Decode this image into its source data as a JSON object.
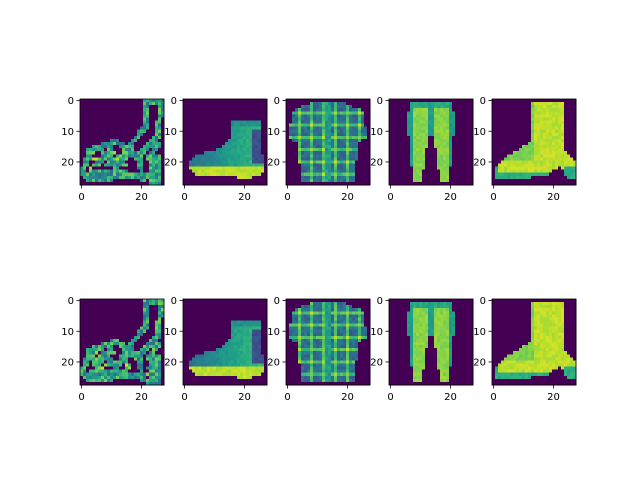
{
  "chart_data": {
    "type": "heatmap",
    "grid": false,
    "layout": {
      "rows": 2,
      "cols": 5
    },
    "colormap": "viridis",
    "image_size": [
      28,
      28
    ],
    "x_ticks": [
      0,
      20
    ],
    "y_ticks": [
      0,
      10,
      20
    ],
    "xlim": [
      -0.5,
      27.5
    ],
    "ylim": [
      27.5,
      -0.5
    ],
    "panels": [
      {
        "row": 0,
        "col": 0,
        "item": "sandal"
      },
      {
        "row": 0,
        "col": 1,
        "item": "ankle-boot-short"
      },
      {
        "row": 0,
        "col": 2,
        "item": "plaid-shirt"
      },
      {
        "row": 0,
        "col": 3,
        "item": "trouser"
      },
      {
        "row": 0,
        "col": 4,
        "item": "ankle-boot"
      },
      {
        "row": 1,
        "col": 0,
        "item": "sandal"
      },
      {
        "row": 1,
        "col": 1,
        "item": "ankle-boot-short"
      },
      {
        "row": 1,
        "col": 2,
        "item": "plaid-shirt"
      },
      {
        "row": 1,
        "col": 3,
        "item": "trouser"
      },
      {
        "row": 1,
        "col": 4,
        "item": "ankle-boot"
      }
    ]
  }
}
